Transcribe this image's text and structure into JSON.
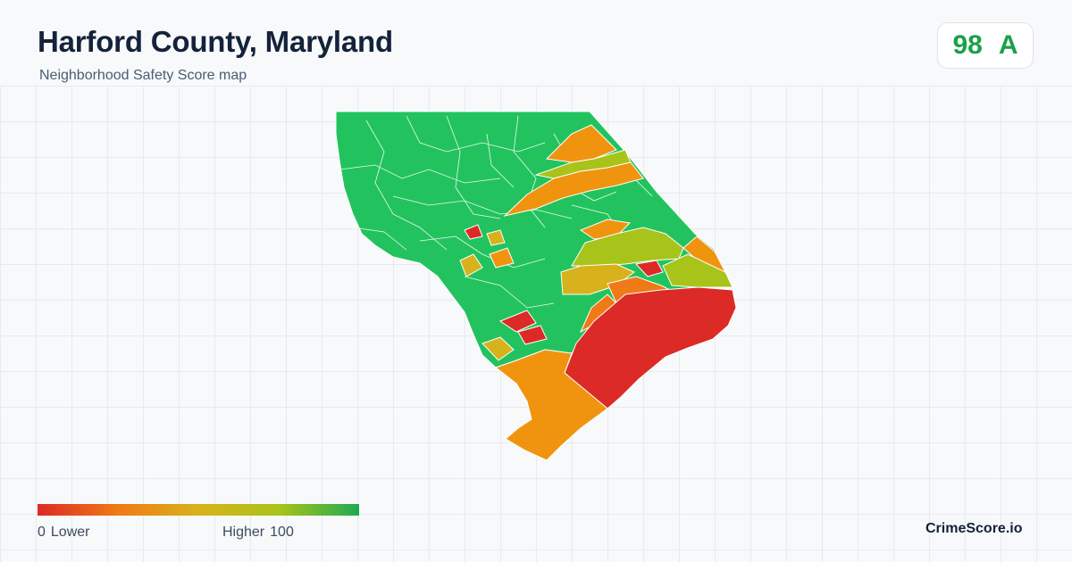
{
  "header": {
    "title": "Harford County, Maryland",
    "subtitle": "Neighborhood Safety Score map"
  },
  "score": {
    "value": "98",
    "grade": "A",
    "color": "#1aa04a"
  },
  "map": {
    "region": "Harford County, Maryland",
    "colors": {
      "high": "#22c35e",
      "upper_mid": "#a8c31a",
      "mid": "#d8b21c",
      "lower_mid": "#f0940f",
      "low": "#dc2a26"
    }
  },
  "legend": {
    "low_value": "0",
    "low_label": "Lower",
    "high_label": "Higher",
    "high_value": "100",
    "gradient_colors": [
      "#dc2a26",
      "#ef7a16",
      "#d8b21c",
      "#a8c31a",
      "#1faa50"
    ]
  },
  "brand": "CrimeScore.io"
}
